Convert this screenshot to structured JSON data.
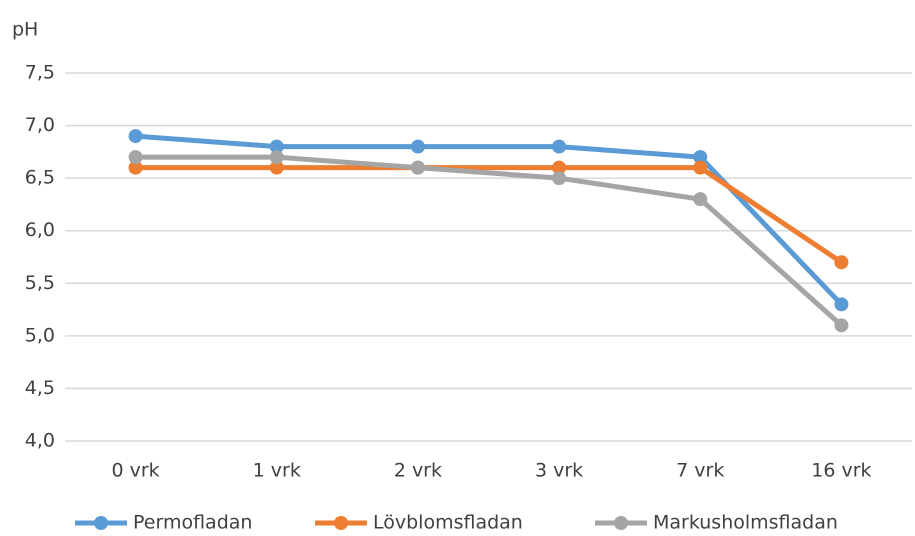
{
  "chart_data": {
    "type": "line",
    "y_label": "pH",
    "categories": [
      "0 vrk",
      "1 vrk",
      "2 vrk",
      "3 vrk",
      "7 vrk",
      "16 vrk"
    ],
    "series": [
      {
        "name": "Permofladan",
        "color": "#5b9bd5",
        "values": [
          6.9,
          6.8,
          6.8,
          6.8,
          6.7,
          5.3
        ]
      },
      {
        "name": "Lövblomsfladan",
        "color": "#ed7d31",
        "values": [
          6.6,
          6.6,
          6.6,
          6.6,
          6.6,
          5.7
        ]
      },
      {
        "name": "Markusholmsfladan",
        "color": "#a5a5a5",
        "values": [
          6.7,
          6.7,
          6.6,
          6.5,
          6.3,
          5.1
        ]
      }
    ],
    "ylim": [
      4,
      7.5
    ],
    "yticks": [
      {
        "value": 4,
        "label": "4,0"
      },
      {
        "value": 4.5,
        "label": "4,5"
      },
      {
        "value": 5,
        "label": "5,0"
      },
      {
        "value": 5.5,
        "label": "5,5"
      },
      {
        "value": 6,
        "label": "6,0"
      },
      {
        "value": 6.5,
        "label": "6,5"
      },
      {
        "value": 7,
        "label": "7,0"
      },
      {
        "value": 7.5,
        "label": "7,5"
      }
    ],
    "grid": true,
    "legend": "bottom"
  }
}
